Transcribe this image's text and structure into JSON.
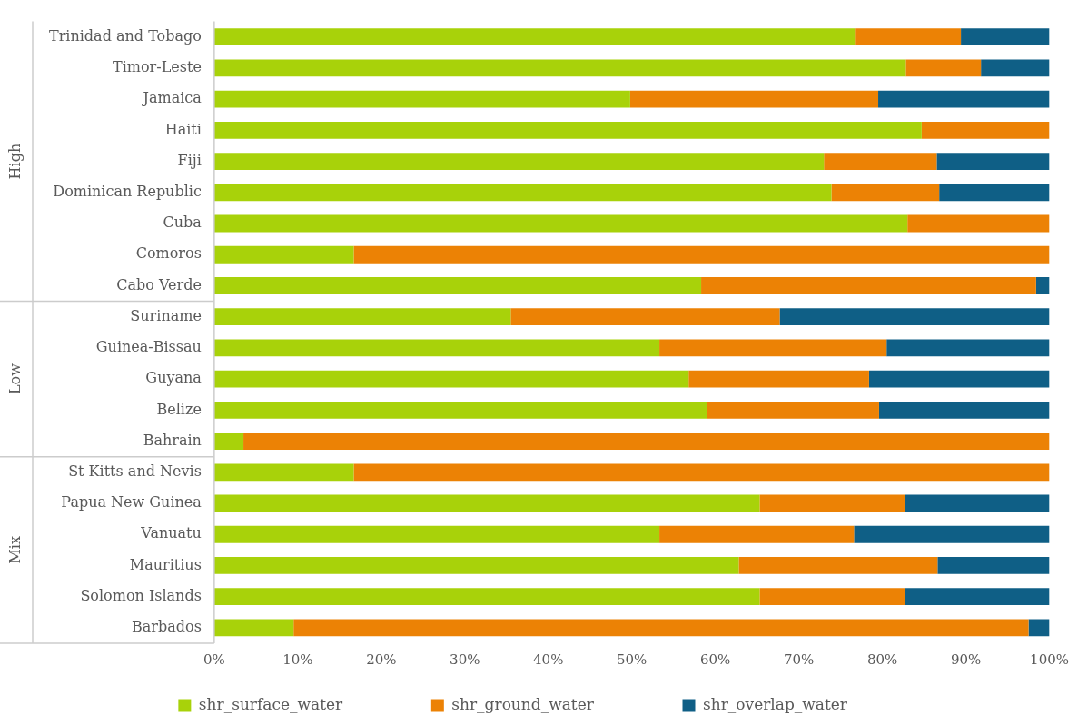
{
  "chart_data": {
    "type": "bar",
    "orientation": "horizontal",
    "stacked": true,
    "legend": "bottom",
    "grid": false,
    "categories": [
      "Trinidad and Tobago",
      "Timor-Leste",
      "Jamaica",
      "Haiti",
      "Fiji",
      "Dominican Republic",
      "Cuba",
      "Comoros",
      "Cabo Verde",
      "Suriname",
      "Guinea-Bissau",
      "Guyana",
      "Belize",
      "Bahrain",
      "St Kitts and Nevis",
      "Papua New Guinea",
      "Vanuatu",
      "Mauritius",
      "Solomon Islands",
      "Barbados"
    ],
    "series": [
      {
        "name": "shr_surface_water",
        "color": "#a8d20a",
        "values": [
          76.8,
          82.8,
          49.8,
          84.7,
          73.0,
          73.9,
          83.0,
          16.7,
          58.3,
          35.5,
          53.3,
          56.8,
          59.0,
          3.5,
          16.7,
          65.3,
          53.3,
          62.8,
          65.3,
          9.5
        ]
      },
      {
        "name": "shr_ground_water",
        "color": "#ec8205",
        "values": [
          12.6,
          9.0,
          29.7,
          15.3,
          13.5,
          12.9,
          17.0,
          83.3,
          40.1,
          32.2,
          27.2,
          21.6,
          20.6,
          96.5,
          83.3,
          17.4,
          23.3,
          23.8,
          17.4,
          88.0
        ]
      },
      {
        "name": "shr_overlap_water",
        "color": "#0f5f86",
        "values": [
          10.6,
          8.2,
          20.5,
          0,
          13.5,
          13.2,
          0,
          0,
          1.6,
          32.3,
          19.5,
          21.6,
          20.4,
          0,
          0,
          17.3,
          23.4,
          13.4,
          17.3,
          2.5
        ]
      }
    ],
    "xlim": [
      0,
      100
    ],
    "xticks": [
      {
        "value": 0,
        "label": "0%"
      },
      {
        "value": 10,
        "label": "10%"
      },
      {
        "value": 20,
        "label": "20%"
      },
      {
        "value": 30,
        "label": "30%"
      },
      {
        "value": 40,
        "label": "40%"
      },
      {
        "value": 50,
        "label": "50%"
      },
      {
        "value": 60,
        "label": "60%"
      },
      {
        "value": 70,
        "label": "70%"
      },
      {
        "value": 80,
        "label": "80%"
      },
      {
        "value": 90,
        "label": "90%"
      },
      {
        "value": 100,
        "label": "100%"
      }
    ],
    "annotations": [
      "High",
      "Low",
      "Mix"
    ]
  }
}
